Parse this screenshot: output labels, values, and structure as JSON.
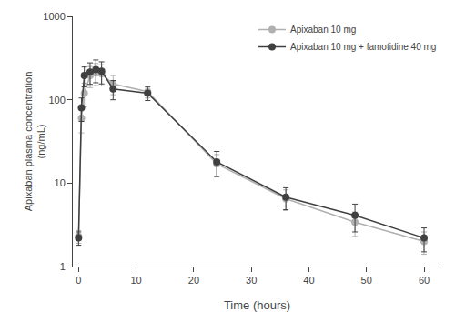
{
  "chart_data": {
    "type": "line",
    "xlabel": "Time (hours)",
    "ylabel": "Apixaban plasma concentration\n(ng/mL)",
    "x": [
      0,
      0.5,
      1,
      2,
      3,
      4,
      6,
      12,
      24,
      36,
      48,
      60
    ],
    "series": [
      {
        "name": "Apixaban 10 mg",
        "color": "#b0b0b0",
        "marker": "circle",
        "values": [
          2.3,
          60,
          120,
          195,
          210,
          205,
          155,
          125,
          17,
          6.5,
          3.4,
          2.0
        ],
        "sd": [
          0.4,
          20,
          38,
          55,
          62,
          58,
          40,
          20,
          5,
          1.8,
          1.1,
          0.6
        ]
      },
      {
        "name": "Apixaban 10 mg + famotidine 40 mg",
        "color": "#404040",
        "marker": "circle",
        "values": [
          2.2,
          80,
          195,
          215,
          230,
          220,
          135,
          120,
          18,
          6.8,
          4.1,
          2.2
        ],
        "sd": [
          0.4,
          25,
          52,
          62,
          70,
          65,
          35,
          22,
          6,
          2.0,
          1.5,
          0.7
        ]
      }
    ],
    "log": "y",
    "xlim": [
      -1,
      63
    ],
    "ylim": [
      1,
      1000
    ],
    "xticks": [
      0,
      10,
      20,
      30,
      40,
      50,
      60
    ],
    "yticks": [
      1,
      10,
      100,
      1000
    ],
    "grid": false,
    "legend": "upper right"
  }
}
